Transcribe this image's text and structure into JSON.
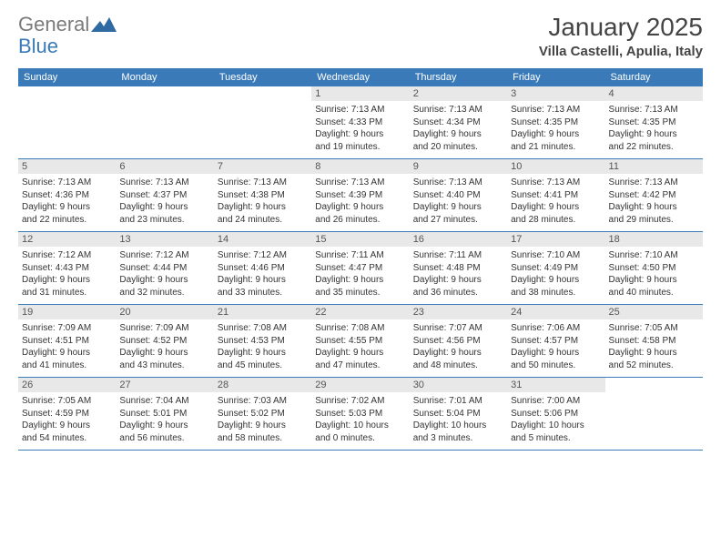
{
  "logo": {
    "part1": "General",
    "part2": "Blue"
  },
  "title": "January 2025",
  "location": "Villa Castelli, Apulia, Italy",
  "colors": {
    "header_bg": "#3a7ab8",
    "header_text": "#ffffff",
    "daynum_bg": "#e8e8e8",
    "border": "#3a7ab8",
    "logo_gray": "#7a7a7a",
    "logo_blue": "#3a7ab8"
  },
  "day_headers": [
    "Sunday",
    "Monday",
    "Tuesday",
    "Wednesday",
    "Thursday",
    "Friday",
    "Saturday"
  ],
  "weeks": [
    [
      null,
      null,
      null,
      {
        "num": "1",
        "sunrise": "Sunrise: 7:13 AM",
        "sunset": "Sunset: 4:33 PM",
        "day1": "Daylight: 9 hours",
        "day2": "and 19 minutes."
      },
      {
        "num": "2",
        "sunrise": "Sunrise: 7:13 AM",
        "sunset": "Sunset: 4:34 PM",
        "day1": "Daylight: 9 hours",
        "day2": "and 20 minutes."
      },
      {
        "num": "3",
        "sunrise": "Sunrise: 7:13 AM",
        "sunset": "Sunset: 4:35 PM",
        "day1": "Daylight: 9 hours",
        "day2": "and 21 minutes."
      },
      {
        "num": "4",
        "sunrise": "Sunrise: 7:13 AM",
        "sunset": "Sunset: 4:35 PM",
        "day1": "Daylight: 9 hours",
        "day2": "and 22 minutes."
      }
    ],
    [
      {
        "num": "5",
        "sunrise": "Sunrise: 7:13 AM",
        "sunset": "Sunset: 4:36 PM",
        "day1": "Daylight: 9 hours",
        "day2": "and 22 minutes."
      },
      {
        "num": "6",
        "sunrise": "Sunrise: 7:13 AM",
        "sunset": "Sunset: 4:37 PM",
        "day1": "Daylight: 9 hours",
        "day2": "and 23 minutes."
      },
      {
        "num": "7",
        "sunrise": "Sunrise: 7:13 AM",
        "sunset": "Sunset: 4:38 PM",
        "day1": "Daylight: 9 hours",
        "day2": "and 24 minutes."
      },
      {
        "num": "8",
        "sunrise": "Sunrise: 7:13 AM",
        "sunset": "Sunset: 4:39 PM",
        "day1": "Daylight: 9 hours",
        "day2": "and 26 minutes."
      },
      {
        "num": "9",
        "sunrise": "Sunrise: 7:13 AM",
        "sunset": "Sunset: 4:40 PM",
        "day1": "Daylight: 9 hours",
        "day2": "and 27 minutes."
      },
      {
        "num": "10",
        "sunrise": "Sunrise: 7:13 AM",
        "sunset": "Sunset: 4:41 PM",
        "day1": "Daylight: 9 hours",
        "day2": "and 28 minutes."
      },
      {
        "num": "11",
        "sunrise": "Sunrise: 7:13 AM",
        "sunset": "Sunset: 4:42 PM",
        "day1": "Daylight: 9 hours",
        "day2": "and 29 minutes."
      }
    ],
    [
      {
        "num": "12",
        "sunrise": "Sunrise: 7:12 AM",
        "sunset": "Sunset: 4:43 PM",
        "day1": "Daylight: 9 hours",
        "day2": "and 31 minutes."
      },
      {
        "num": "13",
        "sunrise": "Sunrise: 7:12 AM",
        "sunset": "Sunset: 4:44 PM",
        "day1": "Daylight: 9 hours",
        "day2": "and 32 minutes."
      },
      {
        "num": "14",
        "sunrise": "Sunrise: 7:12 AM",
        "sunset": "Sunset: 4:46 PM",
        "day1": "Daylight: 9 hours",
        "day2": "and 33 minutes."
      },
      {
        "num": "15",
        "sunrise": "Sunrise: 7:11 AM",
        "sunset": "Sunset: 4:47 PM",
        "day1": "Daylight: 9 hours",
        "day2": "and 35 minutes."
      },
      {
        "num": "16",
        "sunrise": "Sunrise: 7:11 AM",
        "sunset": "Sunset: 4:48 PM",
        "day1": "Daylight: 9 hours",
        "day2": "and 36 minutes."
      },
      {
        "num": "17",
        "sunrise": "Sunrise: 7:10 AM",
        "sunset": "Sunset: 4:49 PM",
        "day1": "Daylight: 9 hours",
        "day2": "and 38 minutes."
      },
      {
        "num": "18",
        "sunrise": "Sunrise: 7:10 AM",
        "sunset": "Sunset: 4:50 PM",
        "day1": "Daylight: 9 hours",
        "day2": "and 40 minutes."
      }
    ],
    [
      {
        "num": "19",
        "sunrise": "Sunrise: 7:09 AM",
        "sunset": "Sunset: 4:51 PM",
        "day1": "Daylight: 9 hours",
        "day2": "and 41 minutes."
      },
      {
        "num": "20",
        "sunrise": "Sunrise: 7:09 AM",
        "sunset": "Sunset: 4:52 PM",
        "day1": "Daylight: 9 hours",
        "day2": "and 43 minutes."
      },
      {
        "num": "21",
        "sunrise": "Sunrise: 7:08 AM",
        "sunset": "Sunset: 4:53 PM",
        "day1": "Daylight: 9 hours",
        "day2": "and 45 minutes."
      },
      {
        "num": "22",
        "sunrise": "Sunrise: 7:08 AM",
        "sunset": "Sunset: 4:55 PM",
        "day1": "Daylight: 9 hours",
        "day2": "and 47 minutes."
      },
      {
        "num": "23",
        "sunrise": "Sunrise: 7:07 AM",
        "sunset": "Sunset: 4:56 PM",
        "day1": "Daylight: 9 hours",
        "day2": "and 48 minutes."
      },
      {
        "num": "24",
        "sunrise": "Sunrise: 7:06 AM",
        "sunset": "Sunset: 4:57 PM",
        "day1": "Daylight: 9 hours",
        "day2": "and 50 minutes."
      },
      {
        "num": "25",
        "sunrise": "Sunrise: 7:05 AM",
        "sunset": "Sunset: 4:58 PM",
        "day1": "Daylight: 9 hours",
        "day2": "and 52 minutes."
      }
    ],
    [
      {
        "num": "26",
        "sunrise": "Sunrise: 7:05 AM",
        "sunset": "Sunset: 4:59 PM",
        "day1": "Daylight: 9 hours",
        "day2": "and 54 minutes."
      },
      {
        "num": "27",
        "sunrise": "Sunrise: 7:04 AM",
        "sunset": "Sunset: 5:01 PM",
        "day1": "Daylight: 9 hours",
        "day2": "and 56 minutes."
      },
      {
        "num": "28",
        "sunrise": "Sunrise: 7:03 AM",
        "sunset": "Sunset: 5:02 PM",
        "day1": "Daylight: 9 hours",
        "day2": "and 58 minutes."
      },
      {
        "num": "29",
        "sunrise": "Sunrise: 7:02 AM",
        "sunset": "Sunset: 5:03 PM",
        "day1": "Daylight: 10 hours",
        "day2": "and 0 minutes."
      },
      {
        "num": "30",
        "sunrise": "Sunrise: 7:01 AM",
        "sunset": "Sunset: 5:04 PM",
        "day1": "Daylight: 10 hours",
        "day2": "and 3 minutes."
      },
      {
        "num": "31",
        "sunrise": "Sunrise: 7:00 AM",
        "sunset": "Sunset: 5:06 PM",
        "day1": "Daylight: 10 hours",
        "day2": "and 5 minutes."
      },
      null
    ]
  ]
}
